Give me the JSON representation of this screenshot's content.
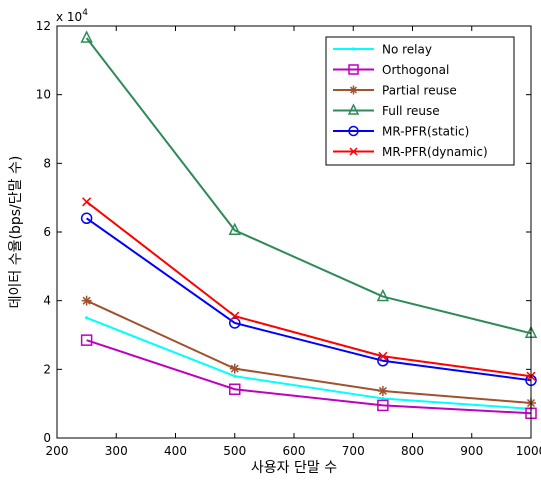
{
  "chart_data": {
    "type": "line",
    "title": "",
    "xlabel": "사용자 단말 수",
    "ylabel": "데이터 수율(bps/단말 수)",
    "y_multiplier_label": "x 10",
    "y_multiplier_exponent": "4",
    "xlim": [
      200,
      1000
    ],
    "ylim": [
      0,
      12
    ],
    "xticks": [
      200,
      300,
      400,
      500,
      600,
      700,
      800,
      900,
      1000
    ],
    "yticks": [
      0,
      2,
      4,
      6,
      8,
      10,
      12
    ],
    "x": [
      250,
      500,
      750,
      1000
    ],
    "grid": false,
    "legend_position": "top-right",
    "series": [
      {
        "name": "No relay",
        "values": [
          3.5,
          1.8,
          1.15,
          0.85
        ],
        "color": "#00ffff",
        "marker": "point"
      },
      {
        "name": "Orthogonal",
        "values": [
          2.85,
          1.42,
          0.95,
          0.72
        ],
        "color": "#bf00bf",
        "marker": "square"
      },
      {
        "name": "Partial reuse",
        "values": [
          4.0,
          2.02,
          1.37,
          1.02
        ],
        "color": "#a0522d",
        "marker": "star"
      },
      {
        "name": "Full reuse",
        "values": [
          11.65,
          6.05,
          4.12,
          3.05
        ],
        "color": "#2e8b57",
        "marker": "triangle"
      },
      {
        "name": "MR-PFR(static)",
        "values": [
          6.4,
          3.35,
          2.25,
          1.68
        ],
        "color": "#0000ff",
        "marker": "circle"
      },
      {
        "name": "MR-PFR(dynamic)",
        "values": [
          6.88,
          3.55,
          2.38,
          1.8
        ],
        "color": "#ff0000",
        "marker": "x"
      }
    ]
  }
}
